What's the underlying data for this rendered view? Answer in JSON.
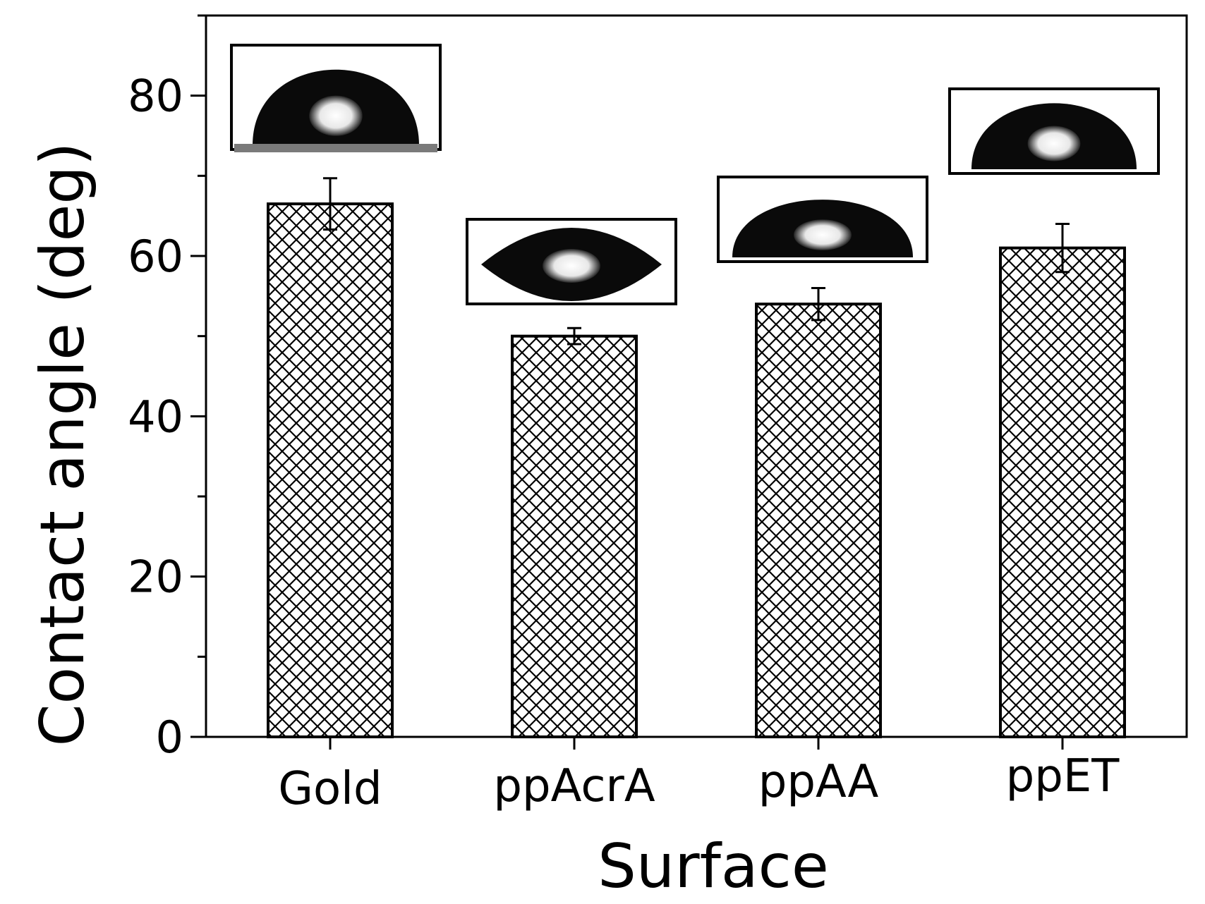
{
  "chart_data": {
    "type": "bar",
    "categories": [
      "Gold",
      "ppAcrA",
      "ppAA",
      "ppET"
    ],
    "values": [
      66.5,
      50.0,
      54.0,
      61.0
    ],
    "errors": [
      3.2,
      1.0,
      2.0,
      3.0
    ],
    "xlabel": "Surface",
    "ylabel": "Contact angle (deg)",
    "ylim": [
      0,
      90
    ],
    "yticks": [
      0,
      20,
      40,
      60,
      80
    ],
    "bar_fill": "crosshatch",
    "grid": false,
    "insets": "droplet photographs above each bar"
  },
  "colors": {
    "ink": "#000000",
    "background": "#ffffff"
  }
}
